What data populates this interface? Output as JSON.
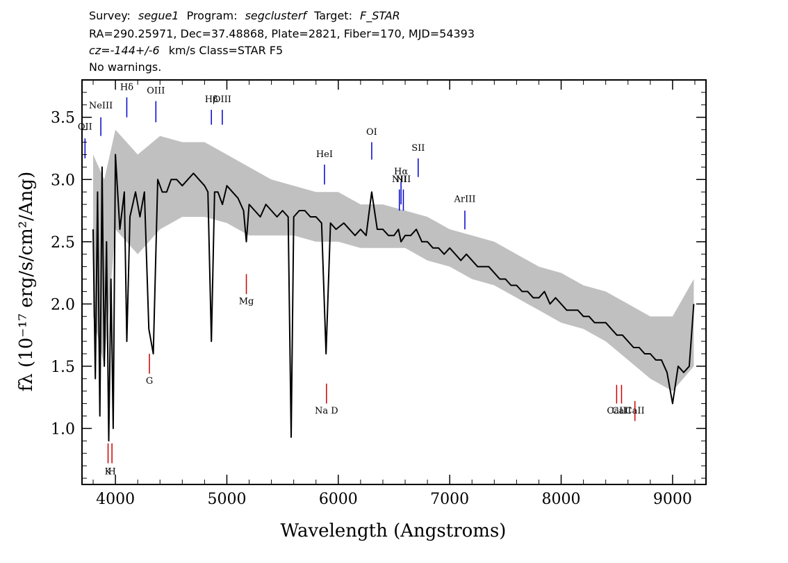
{
  "header": {
    "line1": {
      "survey_key": "Survey:",
      "survey": "segue1",
      "program_key": "Program:",
      "program": "segclusterf",
      "target_key": "Target:",
      "target": "F_STAR"
    },
    "line2": "RA=290.25971, Dec=37.48868, Plate=2821, Fiber=170, MJD=54393",
    "line3": {
      "cz": "cz=-144+/-6",
      "rest": "km/s  Class=STAR F5"
    },
    "line4": "No warnings."
  },
  "chart_data": {
    "type": "line",
    "xlabel": "Wavelength (Angstroms)",
    "ylabel": "fλ (10⁻¹⁷ erg/s/cm²/Ang)",
    "xlim": [
      3700,
      9300
    ],
    "ylim": [
      0.55,
      3.8
    ],
    "x_ticks": [
      4000,
      5000,
      6000,
      7000,
      8000,
      9000
    ],
    "x_tick_labels": [
      "4000",
      "5000",
      "6000",
      "7000",
      "8000",
      "9000"
    ],
    "y_ticks": [
      1.0,
      1.5,
      2.0,
      2.5,
      3.0,
      3.5
    ],
    "y_tick_labels": [
      "1.0",
      "1.5",
      "2.0",
      "2.5",
      "3.0",
      "3.5"
    ],
    "grid": false,
    "series": [
      {
        "role": "flux",
        "color": "#000000",
        "x": [
          3800,
          3820,
          3840,
          3860,
          3880,
          3900,
          3920,
          3940,
          3960,
          3980,
          4000,
          4040,
          4080,
          4102,
          4130,
          4180,
          4220,
          4260,
          4300,
          4340,
          4380,
          4420,
          4460,
          4500,
          4550,
          4600,
          4650,
          4700,
          4750,
          4800,
          4830,
          4861,
          4890,
          4920,
          4960,
          5000,
          5050,
          5100,
          5150,
          5175,
          5200,
          5250,
          5300,
          5350,
          5400,
          5450,
          5500,
          5550,
          5577,
          5600,
          5650,
          5700,
          5750,
          5800,
          5850,
          5890,
          5930,
          5980,
          6050,
          6100,
          6150,
          6200,
          6250,
          6300,
          6350,
          6400,
          6450,
          6500,
          6540,
          6563,
          6600,
          6650,
          6700,
          6750,
          6800,
          6850,
          6900,
          6950,
          7000,
          7050,
          7100,
          7150,
          7200,
          7250,
          7300,
          7350,
          7400,
          7450,
          7500,
          7550,
          7600,
          7650,
          7700,
          7750,
          7800,
          7850,
          7900,
          7950,
          8000,
          8050,
          8100,
          8150,
          8200,
          8250,
          8300,
          8350,
          8400,
          8450,
          8500,
          8550,
          8600,
          8650,
          8700,
          8750,
          8800,
          8850,
          8900,
          8950,
          9000,
          9050,
          9100,
          9150,
          9190
        ],
        "y": [
          2.6,
          1.4,
          2.9,
          1.1,
          3.1,
          1.5,
          2.5,
          0.9,
          2.2,
          1.0,
          3.2,
          2.6,
          2.9,
          1.7,
          2.7,
          2.9,
          2.7,
          2.9,
          1.8,
          1.6,
          3.0,
          2.9,
          2.9,
          3.0,
          3.0,
          2.95,
          3.0,
          3.05,
          3.0,
          2.95,
          2.9,
          1.7,
          2.9,
          2.9,
          2.8,
          2.95,
          2.9,
          2.85,
          2.75,
          2.5,
          2.8,
          2.75,
          2.7,
          2.8,
          2.75,
          2.7,
          2.75,
          2.7,
          0.93,
          2.7,
          2.75,
          2.75,
          2.7,
          2.7,
          2.65,
          1.6,
          2.65,
          2.6,
          2.65,
          2.6,
          2.55,
          2.6,
          2.55,
          2.9,
          2.6,
          2.6,
          2.55,
          2.55,
          2.6,
          2.5,
          2.55,
          2.55,
          2.6,
          2.5,
          2.5,
          2.45,
          2.45,
          2.4,
          2.45,
          2.4,
          2.35,
          2.4,
          2.35,
          2.3,
          2.3,
          2.3,
          2.25,
          2.2,
          2.2,
          2.15,
          2.15,
          2.1,
          2.1,
          2.05,
          2.05,
          2.1,
          2.0,
          2.05,
          2.0,
          1.95,
          1.95,
          1.95,
          1.9,
          1.9,
          1.85,
          1.85,
          1.85,
          1.8,
          1.75,
          1.75,
          1.7,
          1.65,
          1.65,
          1.6,
          1.6,
          1.55,
          1.55,
          1.45,
          1.2,
          1.5,
          1.45,
          1.5,
          2.0
        ]
      },
      {
        "role": "error-band",
        "color": "#c0c0c0",
        "x": [
          3800,
          3900,
          4000,
          4200,
          4400,
          4600,
          4800,
          5000,
          5200,
          5400,
          5600,
          5800,
          6000,
          6200,
          6400,
          6600,
          6800,
          7000,
          7200,
          7400,
          7600,
          7800,
          8000,
          8200,
          8400,
          8600,
          8800,
          9000,
          9190
        ],
        "y_low": [
          1.9,
          1.5,
          2.6,
          2.4,
          2.6,
          2.7,
          2.7,
          2.65,
          2.55,
          2.55,
          2.55,
          2.5,
          2.5,
          2.45,
          2.45,
          2.45,
          2.35,
          2.3,
          2.2,
          2.15,
          2.05,
          1.95,
          1.85,
          1.8,
          1.7,
          1.55,
          1.4,
          1.3,
          1.5
        ],
        "y_high": [
          3.2,
          3.0,
          3.4,
          3.2,
          3.35,
          3.3,
          3.3,
          3.2,
          3.1,
          3.0,
          2.95,
          2.9,
          2.9,
          2.8,
          2.8,
          2.75,
          2.7,
          2.6,
          2.55,
          2.5,
          2.4,
          2.3,
          2.25,
          2.15,
          2.1,
          2.0,
          1.9,
          1.9,
          2.2
        ]
      }
    ],
    "emission_lines": [
      {
        "name": "OII",
        "x": 3727,
        "y": [
          3.17,
          3.33
        ],
        "color": "#0000cc",
        "label_y": 3.4
      },
      {
        "name": "NeIII",
        "x": 3869,
        "y": [
          3.35,
          3.5
        ],
        "color": "#0000cc",
        "label_y": 3.57
      },
      {
        "name": "Hδ",
        "x": 4102,
        "y": [
          3.5,
          3.66
        ],
        "color": "#0000cc",
        "label_y": 3.72
      },
      {
        "name": "OIII",
        "x": 4363,
        "y": [
          3.46,
          3.63
        ],
        "color": "#0000cc",
        "label_y": 3.69
      },
      {
        "name": "Hβ",
        "x": 4861,
        "y": [
          3.44,
          3.56
        ],
        "color": "#0000cc",
        "label_y": 3.62
      },
      {
        "name": "OIII",
        "x": 4959,
        "y": [
          3.44,
          3.56
        ],
        "color": "#0000cc",
        "label_y": 3.62
      },
      {
        "name": "HeI",
        "x": 5876,
        "y": [
          2.96,
          3.12
        ],
        "color": "#0000cc",
        "label_y": 3.18
      },
      {
        "name": "OI",
        "x": 6300,
        "y": [
          3.16,
          3.3
        ],
        "color": "#0000cc",
        "label_y": 3.36
      },
      {
        "name": "NII",
        "x": 6548,
        "y": [
          2.75,
          2.92
        ],
        "color": "#0000cc",
        "label_y": 2.98
      },
      {
        "name": "Hα",
        "x": 6563,
        "y": [
          2.8,
          2.98
        ],
        "color": "#0000cc",
        "label_y": 3.04
      },
      {
        "name": "NII",
        "x": 6584,
        "y": [
          2.75,
          2.92
        ],
        "color": "#0000cc",
        "label_y": 2.98
      },
      {
        "name": "SII",
        "x": 6717,
        "y": [
          3.02,
          3.17
        ],
        "color": "#0000cc",
        "label_y": 3.23
      },
      {
        "name": "ArIII",
        "x": 7136,
        "y": [
          2.6,
          2.75
        ],
        "color": "#0000cc",
        "label_y": 2.82
      }
    ],
    "absorption_lines": [
      {
        "name": "K",
        "x": 3934,
        "y": [
          0.88,
          0.72
        ],
        "color": "#cc0000",
        "label_y": 0.63
      },
      {
        "name": "H",
        "x": 3969,
        "y": [
          0.88,
          0.72
        ],
        "color": "#cc0000",
        "label_y": 0.63
      },
      {
        "name": "G",
        "x": 4305,
        "y": [
          1.6,
          1.44
        ],
        "color": "#cc0000",
        "label_y": 1.36
      },
      {
        "name": "Mg",
        "x": 5175,
        "y": [
          2.24,
          2.08
        ],
        "color": "#cc0000",
        "label_y": 2.0
      },
      {
        "name": "Na D",
        "x": 5894,
        "y": [
          1.36,
          1.2
        ],
        "color": "#cc0000",
        "label_y": 1.12
      },
      {
        "name": "CaII",
        "x": 8498,
        "y": [
          1.35,
          1.2
        ],
        "color": "#cc0000",
        "label_y": 1.12
      },
      {
        "name": "CaII",
        "x": 8542,
        "y": [
          1.35,
          1.2
        ],
        "color": "#cc0000",
        "label_y": 1.12
      },
      {
        "name": "CaII",
        "x": 8662,
        "y": [
          1.22,
          1.06
        ],
        "color": "#cc0000",
        "label_y": 1.12
      }
    ]
  }
}
